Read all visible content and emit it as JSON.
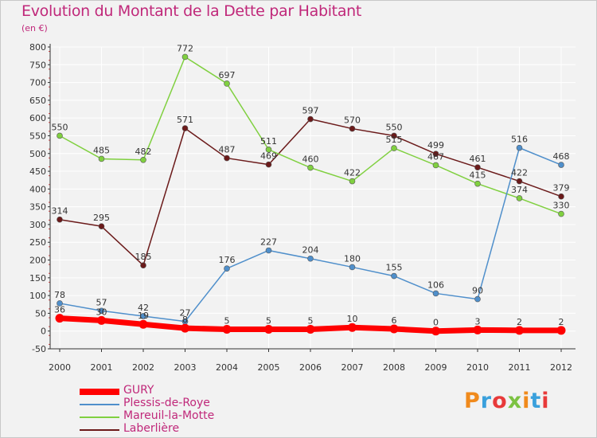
{
  "title": "Evolution du Montant de la Dette par Habitant",
  "subtitle": "(en €)",
  "logo_text": "Proxiti",
  "colors": {
    "title": "#c0287a",
    "background": "#f2f2f2",
    "grid": "#ffffff",
    "axis": "#333333"
  },
  "chart_data": {
    "type": "line",
    "x": [
      "2000",
      "2001",
      "2002",
      "2003",
      "2004",
      "2005",
      "2006",
      "2007",
      "2008",
      "2009",
      "2010",
      "2011",
      "2012"
    ],
    "ylim": [
      -50,
      800
    ],
    "yticks": [
      -50,
      0,
      50,
      100,
      150,
      200,
      250,
      300,
      350,
      400,
      450,
      500,
      550,
      600,
      650,
      700,
      750,
      800
    ],
    "grid": true,
    "legend_position": "bottom-left",
    "series": [
      {
        "name": "GURY",
        "color": "#ff0000",
        "values": [
          36,
          30,
          19,
          8,
          5,
          5,
          5,
          10,
          6,
          0,
          3,
          2,
          2
        ],
        "labels": [
          "36",
          "30",
          "19",
          "8",
          "5",
          "5",
          "5",
          "10",
          "6",
          "0",
          "3",
          "2",
          "2"
        ]
      },
      {
        "name": "Plessis-de-Roye",
        "color": "#4f8fcb",
        "values": [
          78,
          57,
          42,
          27,
          176,
          227,
          204,
          180,
          155,
          106,
          90,
          516,
          468
        ],
        "labels": [
          "78",
          "57",
          "42",
          "27",
          "176",
          "227",
          "204",
          "180",
          "155",
          "106",
          "90",
          "516",
          "468"
        ]
      },
      {
        "name": "Mareuil-la-Motte",
        "color": "#80d040",
        "values": [
          550,
          485,
          482,
          772,
          697,
          511,
          460,
          422,
          515,
          467,
          415,
          374,
          330
        ],
        "labels": [
          "550",
          "485",
          "482",
          "772",
          "697",
          "511",
          "460",
          "422",
          "515",
          "467",
          "415",
          "374",
          "330"
        ]
      },
      {
        "name": "Laberlière",
        "color": "#6b1a1a",
        "values": [
          314,
          295,
          185,
          571,
          487,
          469,
          597,
          570,
          550,
          499,
          461,
          422,
          379
        ],
        "labels": [
          "314",
          "295",
          "185",
          "571",
          "487",
          "469",
          "597",
          "570",
          "550",
          "499",
          "461",
          "422",
          "379"
        ]
      }
    ]
  }
}
